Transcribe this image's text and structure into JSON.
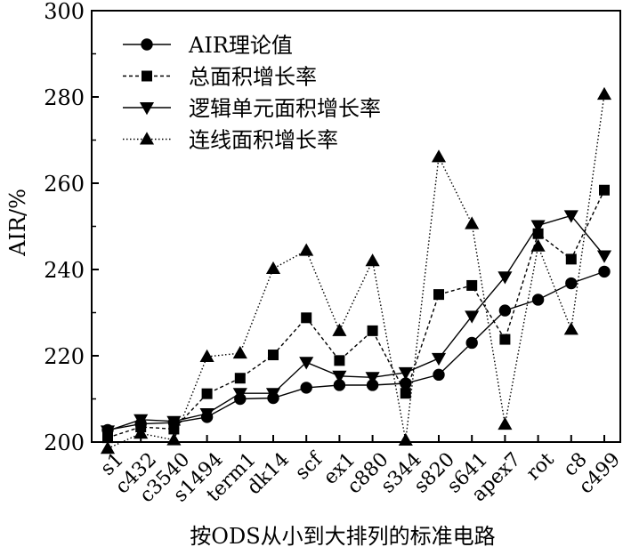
{
  "chart_data": {
    "type": "line",
    "title": "",
    "xlabel": "按ODS从小到大排列的标准电路",
    "ylabel": "AIR/%",
    "ylim": [
      200,
      300
    ],
    "yticks": [
      200,
      220,
      240,
      260,
      280,
      300
    ],
    "legend_position": "top-left",
    "grid": false,
    "categories": [
      "s1",
      "c432",
      "c3540",
      "s1494",
      "term1",
      "dk14",
      "scf",
      "ex1",
      "c880",
      "s344",
      "s820",
      "s641",
      "apex7",
      "rot",
      "c8",
      "c499"
    ],
    "series": [
      {
        "name": "AIR理论值",
        "marker": "circle",
        "line": "solid",
        "values": [
          202.8,
          204.2,
          204.5,
          205.8,
          210.0,
          210.2,
          212.6,
          213.2,
          213.2,
          213.6,
          215.6,
          223.0,
          230.5,
          233.0,
          236.8,
          239.5
        ]
      },
      {
        "name": "总面积增长率",
        "marker": "square",
        "line": "dashed",
        "values": [
          201.0,
          203.5,
          203.0,
          211.2,
          214.8,
          220.2,
          228.8,
          218.9,
          225.8,
          211.3,
          234.2,
          236.3,
          223.8,
          248.3,
          242.4,
          258.4
        ]
      },
      {
        "name": "逻辑单元面积增长率",
        "marker": "triangle-down",
        "line": "solid",
        "values": [
          202.6,
          205.2,
          204.8,
          206.6,
          211.3,
          211.3,
          218.5,
          215.3,
          215.0,
          216.1,
          219.4,
          229.2,
          238.3,
          250.2,
          252.5,
          243.2
        ]
      },
      {
        "name": "连线面积增长率",
        "marker": "triangle-up",
        "line": "dotted",
        "values": [
          198.5,
          202.0,
          200.5,
          219.8,
          220.6,
          240.2,
          244.4,
          225.8,
          242.0,
          200.4,
          266.1,
          250.6,
          204.1,
          245.4,
          226.1,
          280.6
        ]
      }
    ]
  }
}
